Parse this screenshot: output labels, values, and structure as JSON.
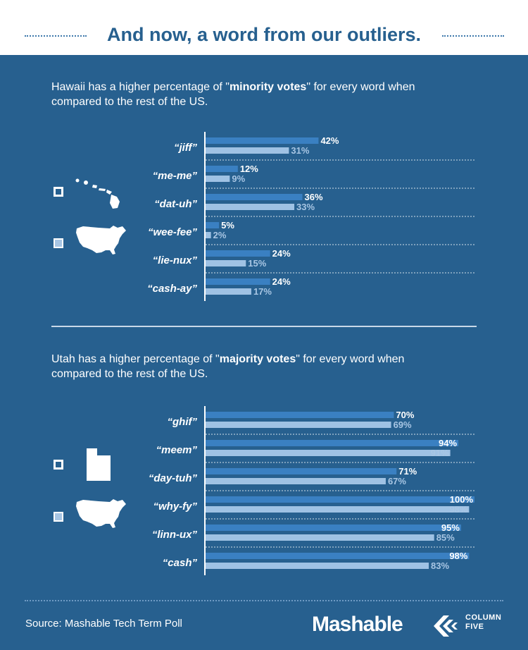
{
  "header": {
    "title": "And now, a word from our outliers."
  },
  "sections": [
    {
      "intro_before": "Hawaii has a higher percentage of \"",
      "intro_bold": "minority votes",
      "intro_after": "\" for every word when compared to the rest of the US."
    },
    {
      "intro_before": "Utah has a higher percentage of \"",
      "intro_bold": "majority votes",
      "intro_after": "\" for every word when compared to the rest of the US."
    }
  ],
  "footer": {
    "source": "Source: Mashable Tech Term Poll",
    "brand": "Mashable",
    "partner_line1": "COLUMN",
    "partner_line2": "FIVE"
  },
  "colors": {
    "background": "#27608f",
    "state_bar": "#3a80c2",
    "us_bar": "#9fc2e4",
    "state_label": "#ffffff",
    "us_label": "#a8c6e4"
  },
  "chart_data": [
    {
      "type": "bar",
      "orientation": "horizontal",
      "categories": [
        "“jiff”",
        "“me-me”",
        "“dat-uh”",
        "“wee-fee”",
        "“lie-nux”",
        "“cash-ay”"
      ],
      "series": [
        {
          "values": [
            42,
            12,
            36,
            5,
            24,
            24
          ]
        },
        {
          "values": [
            31,
            9,
            33,
            2,
            15,
            17
          ]
        }
      ],
      "value_suffix": "%",
      "xlim": [
        0,
        100
      ],
      "grid": true,
      "legend": "left"
    },
    {
      "type": "bar",
      "orientation": "horizontal",
      "categories": [
        "“ghif”",
        "“meem”",
        "“day-tuh”",
        "“why-fy”",
        "“linn-ux”",
        "“cash”"
      ],
      "series": [
        {
          "values": [
            70,
            94,
            71,
            100,
            95,
            98
          ]
        },
        {
          "values": [
            69,
            91,
            67,
            98,
            85,
            83
          ]
        }
      ],
      "value_suffix": "%",
      "xlim": [
        0,
        100
      ],
      "grid": true,
      "legend": "left"
    }
  ]
}
